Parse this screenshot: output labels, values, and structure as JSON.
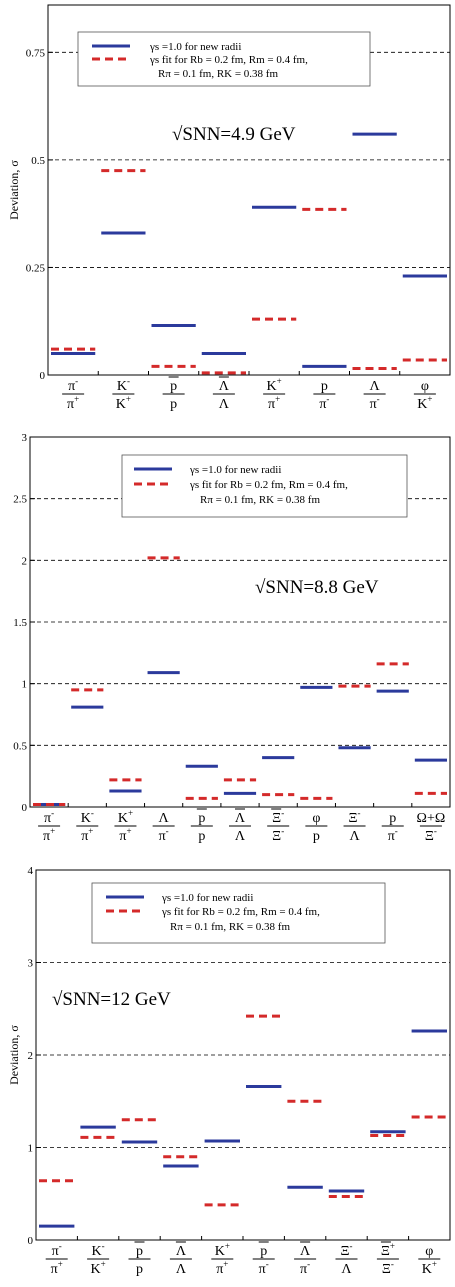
{
  "legend": {
    "line1": "γs =1.0  for new radii",
    "line2": "γs  fit for Rb = 0.2 fm, Rm = 0.4 fm,",
    "line3": "Rπ = 0.1 fm,  RK = 0.38 fm"
  },
  "series_colors": {
    "gamma1": "#2b3a9c",
    "fit": "#d42a2a"
  },
  "chart_data": [
    {
      "type": "bar",
      "energy": "√SNN=4.9 GeV",
      "ylabel": "Deviation, σ",
      "ylim": [
        0,
        0.86
      ],
      "yticks": [
        {
          "v": 0,
          "t": "0"
        },
        {
          "v": 0.25,
          "t": "0.25"
        },
        {
          "v": 0.5,
          "t": "0.5"
        },
        {
          "v": 0.75,
          "t": "0.75"
        }
      ],
      "gridlines": [
        0.25,
        0.5,
        0.75
      ],
      "categories": [
        {
          "num": "π",
          "nsup": "-",
          "den": "π",
          "dsup": "+",
          "bn": false,
          "bd": false
        },
        {
          "num": "K",
          "nsup": "-",
          "den": "K",
          "dsup": "+",
          "bn": false,
          "bd": false
        },
        {
          "num": "p",
          "nsup": "",
          "den": "p",
          "dsup": "",
          "bn": true,
          "bd": false
        },
        {
          "num": "Λ",
          "nsup": "",
          "den": "Λ",
          "dsup": "",
          "bn": true,
          "bd": false
        },
        {
          "num": "K",
          "nsup": "+",
          "den": "π",
          "dsup": "+",
          "bn": false,
          "bd": false
        },
        {
          "num": "p",
          "nsup": "",
          "den": "π",
          "dsup": "-",
          "bn": false,
          "bd": false
        },
        {
          "num": "Λ",
          "nsup": "",
          "den": "π",
          "dsup": "-",
          "bn": false,
          "bd": false
        },
        {
          "num": "φ",
          "nsup": "",
          "den": "K",
          "dsup": "+",
          "bn": false,
          "bd": false
        }
      ],
      "series": [
        {
          "values": [
            0.05,
            0.33,
            0.115,
            0.05,
            0.39,
            0.02,
            0.56,
            0.23
          ]
        },
        {
          "values": [
            0.06,
            0.475,
            0.02,
            0.005,
            0.13,
            0.385,
            0.015,
            0.035
          ]
        }
      ]
    },
    {
      "type": "bar",
      "energy": "√SNN=8.8 GeV",
      "ylabel": "",
      "ylim": [
        0,
        3
      ],
      "yticks": [
        {
          "v": 0,
          "t": "0"
        },
        {
          "v": 0.5,
          "t": "0.5"
        },
        {
          "v": 1,
          "t": "1"
        },
        {
          "v": 1.5,
          "t": "1.5"
        },
        {
          "v": 2,
          "t": "2"
        },
        {
          "v": 2.5,
          "t": "2.5"
        },
        {
          "v": 3,
          "t": "3"
        }
      ],
      "gridlines": [
        0.5,
        1,
        1.5,
        2,
        2.5
      ],
      "categories": [
        {
          "num": "π",
          "nsup": "-",
          "den": "π",
          "dsup": "+",
          "bn": false,
          "bd": false
        },
        {
          "num": "K",
          "nsup": "-",
          "den": "π",
          "dsup": "+",
          "bn": false,
          "bd": false
        },
        {
          "num": "K",
          "nsup": "+",
          "den": "π",
          "dsup": "+",
          "bn": false,
          "bd": false
        },
        {
          "num": "Λ",
          "nsup": "",
          "den": "π",
          "dsup": "-",
          "bn": false,
          "bd": false
        },
        {
          "num": "p",
          "nsup": "",
          "den": "p",
          "dsup": "",
          "bn": true,
          "bd": false
        },
        {
          "num": "Λ",
          "nsup": "",
          "den": "Λ",
          "dsup": "",
          "bn": true,
          "bd": false
        },
        {
          "num": "Ξ",
          "nsup": "-",
          "den": "Ξ",
          "dsup": "-",
          "bn": true,
          "bd": false
        },
        {
          "num": "φ",
          "nsup": "",
          "den": "p",
          "dsup": "",
          "bn": false,
          "bd": false
        },
        {
          "num": "Ξ",
          "nsup": "-",
          "den": "Λ",
          "dsup": "",
          "bn": false,
          "bd": false
        },
        {
          "num": "p",
          "nsup": "",
          "den": "π",
          "dsup": "-",
          "bn": false,
          "bd": false
        },
        {
          "num": "Ω+Ω",
          "nsup": "",
          "den": "Ξ",
          "dsup": "-",
          "bn": false,
          "bd": false
        }
      ],
      "series": [
        {
          "values": [
            0.02,
            0.81,
            0.13,
            1.09,
            0.33,
            0.11,
            0.4,
            0.97,
            0.48,
            0.94,
            0.38
          ]
        },
        {
          "values": [
            0.02,
            0.95,
            0.22,
            2.02,
            0.07,
            0.22,
            0.1,
            0.07,
            0.98,
            1.16,
            0.11
          ]
        }
      ]
    },
    {
      "type": "bar",
      "energy": "√SNN=12 GeV",
      "ylabel": "Deviation, σ",
      "ylim": [
        0,
        4
      ],
      "yticks": [
        {
          "v": 0,
          "t": "0"
        },
        {
          "v": 1,
          "t": "1"
        },
        {
          "v": 2,
          "t": "2"
        },
        {
          "v": 3,
          "t": "3"
        },
        {
          "v": 4,
          "t": "4"
        }
      ],
      "gridlines": [
        1,
        2,
        3
      ],
      "categories": [
        {
          "num": "π",
          "nsup": "-",
          "den": "π",
          "dsup": "+",
          "bn": false,
          "bd": false
        },
        {
          "num": "K",
          "nsup": "-",
          "den": "K",
          "dsup": "+",
          "bn": false,
          "bd": false
        },
        {
          "num": "p",
          "nsup": "",
          "den": "p",
          "dsup": "",
          "bn": true,
          "bd": false
        },
        {
          "num": "Λ",
          "nsup": "",
          "den": "Λ",
          "dsup": "",
          "bn": true,
          "bd": false
        },
        {
          "num": "K",
          "nsup": "+",
          "den": "π",
          "dsup": "+",
          "bn": false,
          "bd": false
        },
        {
          "num": "p",
          "nsup": "",
          "den": "π",
          "dsup": "-",
          "bn": true,
          "bd": false
        },
        {
          "num": "Λ",
          "nsup": "",
          "den": "π",
          "dsup": "-",
          "bn": true,
          "bd": false
        },
        {
          "num": "Ξ",
          "nsup": "-",
          "den": "Λ",
          "dsup": "",
          "bn": false,
          "bd": false
        },
        {
          "num": "Ξ",
          "nsup": "+",
          "den": "Ξ",
          "dsup": "-",
          "bn": true,
          "bd": false
        },
        {
          "num": "φ",
          "nsup": "",
          "den": "K",
          "dsup": "+",
          "bn": false,
          "bd": false
        }
      ],
      "series": [
        {
          "values": [
            0.15,
            1.22,
            1.06,
            0.8,
            1.07,
            1.66,
            0.57,
            0.53,
            1.17,
            2.26
          ]
        },
        {
          "values": [
            0.64,
            1.11,
            1.3,
            0.9,
            0.38,
            2.42,
            1.5,
            0.47,
            1.13,
            1.33
          ]
        }
      ]
    }
  ]
}
